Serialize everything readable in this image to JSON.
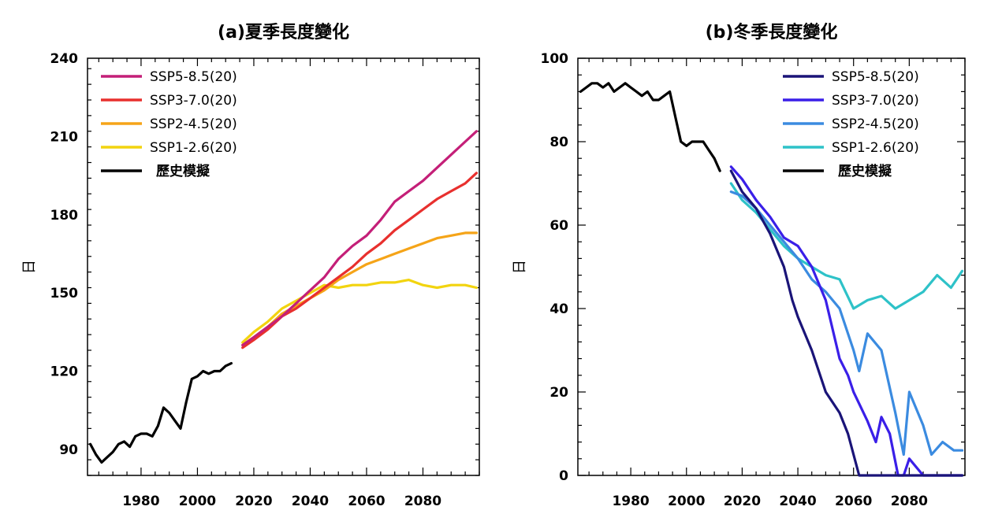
{
  "chart_data": [
    {
      "type": "line",
      "title": "(a)夏季長度變化",
      "ylabel": "日",
      "xlim": [
        1961,
        2100
      ],
      "ylim": [
        80,
        240
      ],
      "xticks": [
        1980,
        2000,
        2020,
        2040,
        2060,
        2080
      ],
      "yticks": [
        90,
        120,
        150,
        180,
        210,
        240
      ],
      "legend_position": "top-left",
      "legend_order": [
        "SSP5-8.5(20)",
        "SSP3-7.0(20)",
        "SSP2-4.5(20)",
        "SSP1-2.6(20)",
        "歷史模擬"
      ],
      "series": [
        {
          "name": "歷史模擬",
          "color": "#000000",
          "x": [
            1962,
            1964,
            1966,
            1968,
            1970,
            1972,
            1974,
            1976,
            1978,
            1980,
            1982,
            1984,
            1986,
            1988,
            1990,
            1992,
            1994,
            1996,
            1998,
            2000,
            2002,
            2004,
            2006,
            2008,
            2010,
            2012
          ],
          "y": [
            92,
            88,
            85,
            87,
            89,
            92,
            93,
            91,
            95,
            96,
            96,
            95,
            99,
            106,
            104,
            101,
            98,
            108,
            117,
            118,
            120,
            119,
            120,
            120,
            122,
            123
          ]
        },
        {
          "name": "SSP1-2.6(20)",
          "color": "#f2d40f",
          "x": [
            2016,
            2020,
            2025,
            2030,
            2035,
            2040,
            2045,
            2050,
            2055,
            2060,
            2065,
            2070,
            2075,
            2080,
            2085,
            2090,
            2095,
            2099
          ],
          "y": [
            131,
            135,
            139,
            144,
            147,
            150,
            153,
            152,
            153,
            153,
            154,
            154,
            155,
            153,
            152,
            153,
            153,
            152
          ]
        },
        {
          "name": "SSP2-4.5(20)",
          "color": "#f5a418",
          "x": [
            2016,
            2020,
            2025,
            2030,
            2035,
            2040,
            2045,
            2050,
            2055,
            2060,
            2065,
            2070,
            2075,
            2080,
            2085,
            2090,
            2095,
            2099
          ],
          "y": [
            130,
            133,
            137,
            142,
            145,
            148,
            151,
            155,
            158,
            161,
            163,
            165,
            167,
            169,
            171,
            172,
            173,
            173
          ]
        },
        {
          "name": "SSP3-7.0(20)",
          "color": "#e8302e",
          "x": [
            2016,
            2020,
            2025,
            2030,
            2035,
            2040,
            2045,
            2050,
            2055,
            2060,
            2065,
            2070,
            2075,
            2080,
            2085,
            2090,
            2095,
            2099
          ],
          "y": [
            129,
            132,
            136,
            141,
            144,
            148,
            152,
            156,
            160,
            165,
            169,
            174,
            178,
            182,
            186,
            189,
            192,
            196
          ]
        },
        {
          "name": "SSP5-8.5(20)",
          "color": "#c41f78",
          "x": [
            2016,
            2020,
            2025,
            2030,
            2035,
            2040,
            2045,
            2050,
            2055,
            2060,
            2065,
            2070,
            2075,
            2080,
            2085,
            2090,
            2095,
            2099
          ],
          "y": [
            130,
            133,
            137,
            141,
            146,
            151,
            156,
            163,
            168,
            172,
            178,
            185,
            189,
            193,
            198,
            203,
            208,
            212
          ]
        }
      ]
    },
    {
      "type": "line",
      "title": "(b)冬季長度變化",
      "ylabel": "日",
      "xlim": [
        1961,
        2100
      ],
      "ylim": [
        0,
        100
      ],
      "xticks": [
        1980,
        2000,
        2020,
        2040,
        2060,
        2080
      ],
      "yticks": [
        0,
        20,
        40,
        60,
        80,
        100
      ],
      "legend_position": "top-right",
      "legend_order": [
        "SSP5-8.5(20)",
        "SSP3-7.0(20)",
        "SSP2-4.5(20)",
        "SSP1-2.6(20)",
        "歷史模擬"
      ],
      "series": [
        {
          "name": "歷史模擬",
          "color": "#000000",
          "x": [
            1962,
            1964,
            1966,
            1968,
            1970,
            1972,
            1974,
            1976,
            1978,
            1980,
            1982,
            1984,
            1986,
            1988,
            1990,
            1992,
            1994,
            1996,
            1998,
            2000,
            2002,
            2004,
            2006,
            2008,
            2010,
            2012
          ],
          "y": [
            92,
            93,
            94,
            94,
            93,
            94,
            92,
            93,
            94,
            93,
            92,
            91,
            92,
            90,
            90,
            91,
            92,
            86,
            80,
            79,
            80,
            80,
            80,
            78,
            76,
            73
          ]
        },
        {
          "name": "SSP1-2.6(20)",
          "color": "#2ec2c8",
          "x": [
            2016,
            2020,
            2025,
            2030,
            2035,
            2040,
            2045,
            2050,
            2055,
            2060,
            2065,
            2070,
            2075,
            2080,
            2085,
            2090,
            2095,
            2099
          ],
          "y": [
            70,
            66,
            63,
            59,
            55,
            52,
            50,
            48,
            47,
            40,
            42,
            43,
            40,
            42,
            44,
            48,
            45,
            49
          ]
        },
        {
          "name": "SSP2-4.5(20)",
          "color": "#3b8be0",
          "x": [
            2016,
            2020,
            2025,
            2030,
            2035,
            2040,
            2045,
            2050,
            2055,
            2060,
            2062,
            2065,
            2070,
            2075,
            2078,
            2080,
            2085,
            2088,
            2092,
            2096,
            2099
          ],
          "y": [
            68,
            67,
            64,
            60,
            56,
            52,
            47,
            44,
            40,
            30,
            25,
            34,
            30,
            15,
            5,
            20,
            12,
            5,
            8,
            6,
            6
          ]
        },
        {
          "name": "SSP3-7.0(20)",
          "color": "#3a1fe8",
          "x": [
            2016,
            2020,
            2025,
            2030,
            2035,
            2040,
            2045,
            2050,
            2055,
            2058,
            2060,
            2065,
            2068,
            2070,
            2073,
            2076,
            2078,
            2080,
            2085,
            2090,
            2099
          ],
          "y": [
            74,
            71,
            66,
            62,
            57,
            55,
            50,
            42,
            28,
            24,
            20,
            13,
            8,
            14,
            10,
            0,
            0,
            4,
            0,
            0,
            0
          ]
        },
        {
          "name": "SSP5-8.5(20)",
          "color": "#1a1478",
          "x": [
            2016,
            2020,
            2025,
            2030,
            2035,
            2038,
            2040,
            2045,
            2050,
            2055,
            2058,
            2060,
            2062,
            2065,
            2070,
            2080,
            2090,
            2099
          ],
          "y": [
            73,
            68,
            64,
            58,
            50,
            42,
            38,
            30,
            20,
            15,
            10,
            5,
            0,
            0,
            0,
            0,
            0,
            0
          ]
        }
      ]
    }
  ]
}
